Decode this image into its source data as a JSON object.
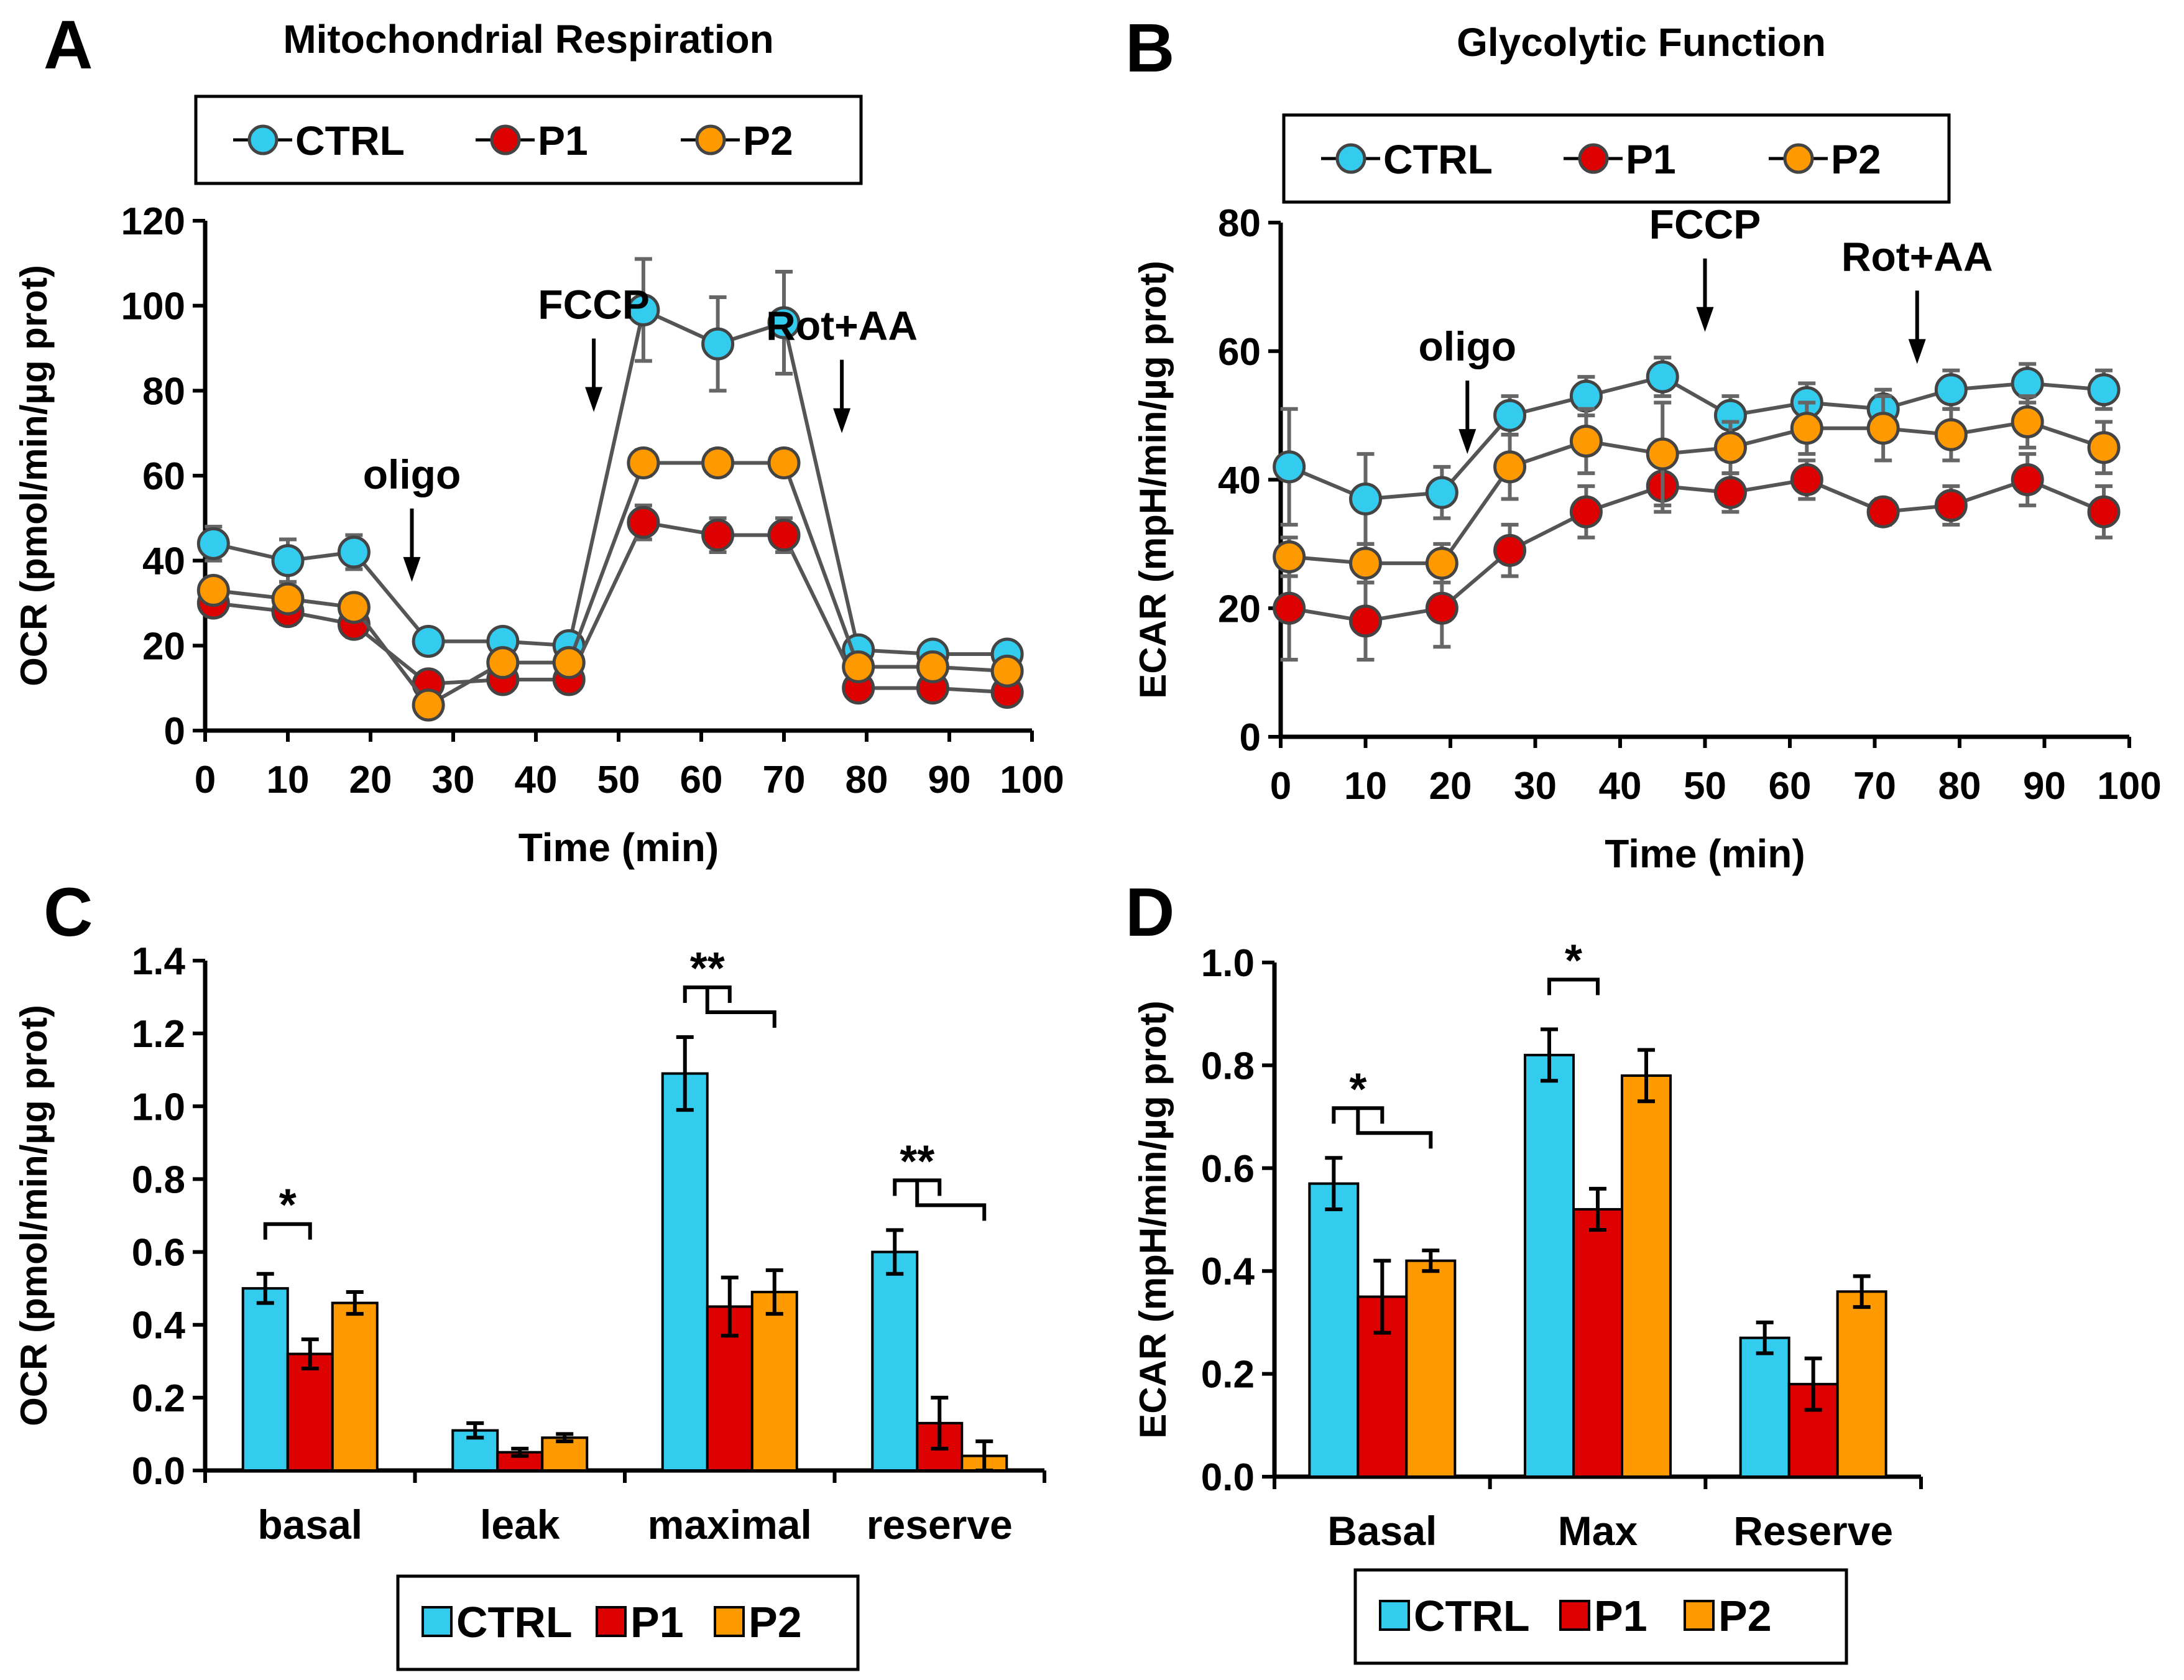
{
  "colors": {
    "CTRL": "#33CCEE",
    "P1": "#DD0000",
    "P2": "#FF9900",
    "axis": "#000000",
    "error": "#666666",
    "line": "#555555"
  },
  "chart_data": [
    {
      "id": "A",
      "type": "line",
      "panel_label": "A",
      "title": "Mitochondrial Respiration",
      "xlabel": "Time (min)",
      "ylabel": "OCR (pmol/min/µg prot)",
      "xlim": [
        0,
        100
      ],
      "ylim": [
        0,
        120
      ],
      "xticks": [
        0,
        10,
        20,
        30,
        40,
        50,
        60,
        70,
        80,
        90,
        100
      ],
      "yticks": [
        0,
        20,
        40,
        60,
        80,
        100,
        120
      ],
      "legend": [
        "CTRL",
        "P1",
        "P2"
      ],
      "x": [
        1,
        10,
        18,
        27,
        36,
        44,
        53,
        62,
        70,
        79,
        88,
        97
      ],
      "series": [
        {
          "name": "CTRL",
          "values": [
            44,
            40,
            42,
            21,
            21,
            20,
            99,
            91,
            96,
            19,
            18,
            18
          ],
          "errors": [
            4,
            5,
            4,
            2,
            2,
            2,
            12,
            11,
            12,
            2,
            2,
            2
          ]
        },
        {
          "name": "P1",
          "values": [
            30,
            28,
            25,
            11,
            12,
            12,
            49,
            46,
            46,
            10,
            10,
            9
          ],
          "errors": [
            3,
            3,
            3,
            2,
            2,
            2,
            4,
            4,
            4,
            1,
            1,
            1
          ]
        },
        {
          "name": "P2",
          "values": [
            33,
            31,
            29,
            6,
            16,
            16,
            63,
            63,
            63,
            15,
            15,
            14
          ],
          "errors": [
            3,
            3,
            3,
            2,
            2,
            2,
            3,
            3,
            3,
            1,
            1,
            1
          ]
        }
      ],
      "annotations": [
        {
          "text": "oligo",
          "x": 25,
          "y": 35
        },
        {
          "text": "FCCP",
          "x": 47,
          "y": 75
        },
        {
          "text": "Rot+AA",
          "x": 77,
          "y": 70
        }
      ]
    },
    {
      "id": "B",
      "type": "line",
      "panel_label": "B",
      "title": "Glycolytic Function",
      "xlabel": "Time (min)",
      "ylabel": "ECAR (mpH/min/µg prot)",
      "xlim": [
        0,
        100
      ],
      "ylim": [
        0,
        80
      ],
      "xticks": [
        0,
        10,
        20,
        30,
        40,
        50,
        60,
        70,
        80,
        90,
        100
      ],
      "yticks": [
        0,
        20,
        40,
        60,
        80
      ],
      "legend": [
        "CTRL",
        "P1",
        "P2"
      ],
      "x": [
        1,
        10,
        19,
        27,
        36,
        45,
        53,
        62,
        71,
        79,
        88,
        97
      ],
      "series": [
        {
          "name": "CTRL",
          "values": [
            42,
            37,
            38,
            50,
            53,
            56,
            50,
            52,
            51,
            54,
            55,
            54
          ],
          "errors": [
            9,
            7,
            4,
            3,
            3,
            3,
            3,
            3,
            3,
            3,
            3,
            3
          ]
        },
        {
          "name": "P1",
          "values": [
            20,
            18,
            20,
            29,
            35,
            39,
            38,
            40,
            35,
            36,
            40,
            35
          ],
          "errors": [
            8,
            6,
            6,
            4,
            4,
            4,
            3,
            3,
            2,
            3,
            4,
            4
          ]
        },
        {
          "name": "P2",
          "values": [
            28,
            27,
            27,
            42,
            46,
            44,
            45,
            48,
            48,
            47,
            49,
            45
          ],
          "errors": [
            3,
            3,
            3,
            5,
            5,
            8,
            4,
            4,
            5,
            4,
            4,
            4
          ]
        }
      ],
      "annotations": [
        {
          "text": "oligo",
          "x": 22,
          "y": 44
        },
        {
          "text": "FCCP",
          "x": 50,
          "y": 63
        },
        {
          "text": "Rot+AA",
          "x": 75,
          "y": 58
        }
      ]
    },
    {
      "id": "C",
      "type": "bar",
      "panel_label": "C",
      "xlabel": "",
      "ylabel": "OCR (pmol/min/µg prot)",
      "ylim": [
        0,
        1.4
      ],
      "yticks": [
        "0.0",
        "0.2",
        "0.4",
        "0.6",
        "0.8",
        "1.0",
        "1.2",
        "1.4"
      ],
      "categories": [
        "basal",
        "leak",
        "maximal",
        "reserve"
      ],
      "legend": [
        "CTRL",
        "P1",
        "P2"
      ],
      "series": [
        {
          "name": "CTRL",
          "values": [
            0.5,
            0.11,
            1.09,
            0.6
          ],
          "errors": [
            0.04,
            0.02,
            0.1,
            0.06
          ]
        },
        {
          "name": "P1",
          "values": [
            0.32,
            0.05,
            0.45,
            0.13
          ],
          "errors": [
            0.04,
            0.01,
            0.08,
            0.07
          ]
        },
        {
          "name": "P2",
          "values": [
            0.46,
            0.09,
            0.49,
            0.04
          ],
          "errors": [
            0.03,
            0.01,
            0.06,
            0.04
          ]
        }
      ],
      "significance": [
        {
          "category": "basal",
          "text": "*",
          "compare": [
            "CTRL",
            "P1"
          ]
        },
        {
          "category": "maximal",
          "text": "**",
          "compare": [
            "CTRL",
            "P1",
            "P2"
          ]
        },
        {
          "category": "reserve",
          "text": "**",
          "compare": [
            "CTRL",
            "P1",
            "P2"
          ]
        }
      ]
    },
    {
      "id": "D",
      "type": "bar",
      "panel_label": "D",
      "xlabel": "",
      "ylabel": "ECAR (mpH/min/µg prot)",
      "ylim": [
        0,
        1.0
      ],
      "yticks": [
        "0.0",
        "0.2",
        "0.4",
        "0.6",
        "0.8",
        "1.0"
      ],
      "categories": [
        "Basal",
        "Max",
        "Reserve"
      ],
      "legend": [
        "CTRL",
        "P1",
        "P2"
      ],
      "series": [
        {
          "name": "CTRL",
          "values": [
            0.57,
            0.82,
            0.27
          ],
          "errors": [
            0.05,
            0.05,
            0.03
          ]
        },
        {
          "name": "P1",
          "values": [
            0.35,
            0.52,
            0.18
          ],
          "errors": [
            0.07,
            0.04,
            0.05
          ]
        },
        {
          "name": "P2",
          "values": [
            0.42,
            0.78,
            0.36
          ],
          "errors": [
            0.02,
            0.05,
            0.03
          ]
        }
      ],
      "significance": [
        {
          "category": "Basal",
          "text": "*",
          "compare": [
            "CTRL",
            "P1",
            "P2"
          ]
        },
        {
          "category": "Max",
          "text": "*",
          "compare": [
            "CTRL",
            "P1"
          ]
        }
      ]
    }
  ]
}
